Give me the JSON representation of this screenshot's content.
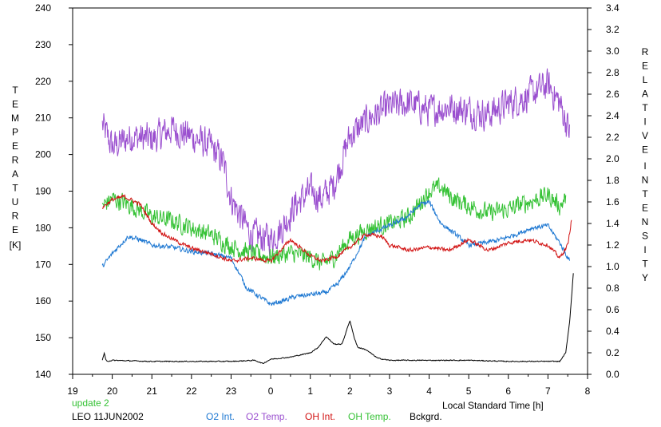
{
  "chart_data": {
    "type": "line",
    "left_axis": {
      "label_letters": [
        "T",
        "E",
        "M",
        "P",
        "E",
        "R",
        "A",
        "T",
        "U",
        "R",
        "E"
      ],
      "unit": "[K]",
      "range": [
        140,
        240
      ],
      "ticks": [
        "140",
        "150",
        "160",
        "170",
        "180",
        "190",
        "200",
        "210",
        "220",
        "230",
        "240"
      ]
    },
    "right_axis": {
      "label_word1": [
        "R",
        "E",
        "L",
        "A",
        "T",
        "I",
        "V",
        "E"
      ],
      "label_word2": [
        "I",
        "N",
        "T",
        "E",
        "N",
        "S",
        "I",
        "T",
        "Y"
      ],
      "range": [
        0.0,
        3.4
      ],
      "ticks": [
        "0.0",
        "0.2",
        "0.4",
        "0.6",
        "0.8",
        "1.0",
        "1.2",
        "1.4",
        "1.6",
        "1.8",
        "2.0",
        "2.2",
        "2.4",
        "2.6",
        "2.8",
        "3.0",
        "3.2",
        "3.4"
      ]
    },
    "x_axis": {
      "label": "Local Standard Time [h]",
      "range": [
        19,
        32
      ],
      "tick_labels": [
        "19",
        "20",
        "21",
        "22",
        "23",
        "0",
        "1",
        "2",
        "3",
        "4",
        "5",
        "6",
        "7",
        "8"
      ]
    },
    "update_text": "update 2",
    "station_text": "LEO 11JUN2002",
    "grid": false,
    "series": [
      {
        "name": "O2 Int.",
        "axis": "right",
        "color": "#1e78d2",
        "noise": 0.03,
        "x": [
          19.75,
          20.0,
          20.4,
          20.7,
          21.0,
          21.5,
          22.0,
          22.5,
          23.0,
          23.4,
          23.8,
          24.0,
          24.3,
          24.6,
          25.0,
          25.4,
          25.7,
          26.0,
          26.4,
          26.8,
          27.0,
          27.4,
          27.8,
          28.0,
          28.3,
          28.6,
          29.0,
          29.4,
          29.8,
          30.2,
          30.6,
          31.0,
          31.3,
          31.55
        ],
        "y": [
          1.0,
          1.12,
          1.28,
          1.25,
          1.2,
          1.18,
          1.14,
          1.12,
          1.08,
          0.8,
          0.7,
          0.65,
          0.68,
          0.72,
          0.74,
          0.76,
          0.84,
          1.0,
          1.28,
          1.35,
          1.38,
          1.45,
          1.58,
          1.6,
          1.4,
          1.32,
          1.2,
          1.22,
          1.25,
          1.3,
          1.36,
          1.38,
          1.22,
          1.05
        ]
      },
      {
        "name": "O2 Temp.",
        "axis": "left",
        "color": "#9a4fcf",
        "noise": 6.0,
        "x": [
          19.75,
          20.0,
          20.5,
          21.0,
          21.5,
          22.0,
          22.5,
          22.8,
          23.0,
          23.5,
          24.0,
          24.3,
          24.6,
          25.0,
          25.3,
          25.6,
          26.0,
          26.5,
          27.0,
          27.5,
          28.0,
          28.5,
          29.0,
          29.5,
          30.0,
          30.5,
          31.0,
          31.3,
          31.55
        ],
        "y": [
          208,
          202,
          205,
          204,
          207,
          205,
          202,
          198,
          188,
          178,
          177,
          180,
          186,
          190,
          188,
          192,
          205,
          210,
          213,
          214,
          212,
          213,
          212,
          211,
          214,
          216,
          219,
          214,
          206
        ]
      },
      {
        "name": "OH Int.",
        "axis": "right",
        "color": "#d21414",
        "noise": 0.025,
        "x": [
          19.75,
          20.0,
          20.3,
          20.7,
          21.0,
          21.3,
          21.7,
          22.0,
          22.5,
          23.0,
          23.5,
          24.0,
          24.5,
          25.0,
          25.3,
          25.7,
          26.0,
          26.4,
          26.8,
          27.0,
          27.5,
          28.0,
          28.5,
          29.0,
          29.5,
          30.0,
          30.5,
          31.0,
          31.3,
          31.5,
          31.6
        ],
        "y": [
          1.55,
          1.62,
          1.65,
          1.58,
          1.4,
          1.3,
          1.22,
          1.17,
          1.12,
          1.05,
          1.08,
          1.05,
          1.25,
          1.1,
          1.05,
          1.1,
          1.18,
          1.3,
          1.28,
          1.2,
          1.15,
          1.18,
          1.15,
          1.25,
          1.15,
          1.22,
          1.25,
          1.2,
          1.08,
          1.2,
          1.45
        ]
      },
      {
        "name": "OH Temp.",
        "axis": "left",
        "color": "#36c236",
        "noise": 3.5,
        "x": [
          19.75,
          20.0,
          20.5,
          21.0,
          21.5,
          22.0,
          22.5,
          23.0,
          23.5,
          24.0,
          24.5,
          25.0,
          25.3,
          25.6,
          26.0,
          26.5,
          27.0,
          27.5,
          28.0,
          28.3,
          28.6,
          29.0,
          29.5,
          30.0,
          30.5,
          31.0,
          31.3,
          31.45
        ],
        "y": [
          186,
          188,
          186,
          183,
          182,
          180,
          178,
          175,
          173,
          172,
          173,
          172,
          170,
          172,
          177,
          180,
          181,
          183,
          190,
          191,
          188,
          186,
          184,
          185,
          187,
          189,
          186,
          188
        ]
      },
      {
        "name": "Bckgrd.",
        "axis": "right",
        "color": "#000000",
        "noise": 0.006,
        "x": [
          19.75,
          19.8,
          19.83,
          19.86,
          20.0,
          21.0,
          22.0,
          23.0,
          23.6,
          23.8,
          24.0,
          24.5,
          25.0,
          25.2,
          25.4,
          25.6,
          25.8,
          26.0,
          26.1,
          26.2,
          26.4,
          26.7,
          27.0,
          28.0,
          29.0,
          30.0,
          31.0,
          31.3,
          31.45,
          31.55,
          31.65
        ],
        "y": [
          0.13,
          0.2,
          0.14,
          0.12,
          0.13,
          0.12,
          0.12,
          0.12,
          0.13,
          0.1,
          0.14,
          0.16,
          0.2,
          0.25,
          0.35,
          0.28,
          0.28,
          0.5,
          0.35,
          0.25,
          0.23,
          0.15,
          0.13,
          0.13,
          0.13,
          0.12,
          0.12,
          0.12,
          0.2,
          0.5,
          0.98
        ]
      }
    ]
  }
}
